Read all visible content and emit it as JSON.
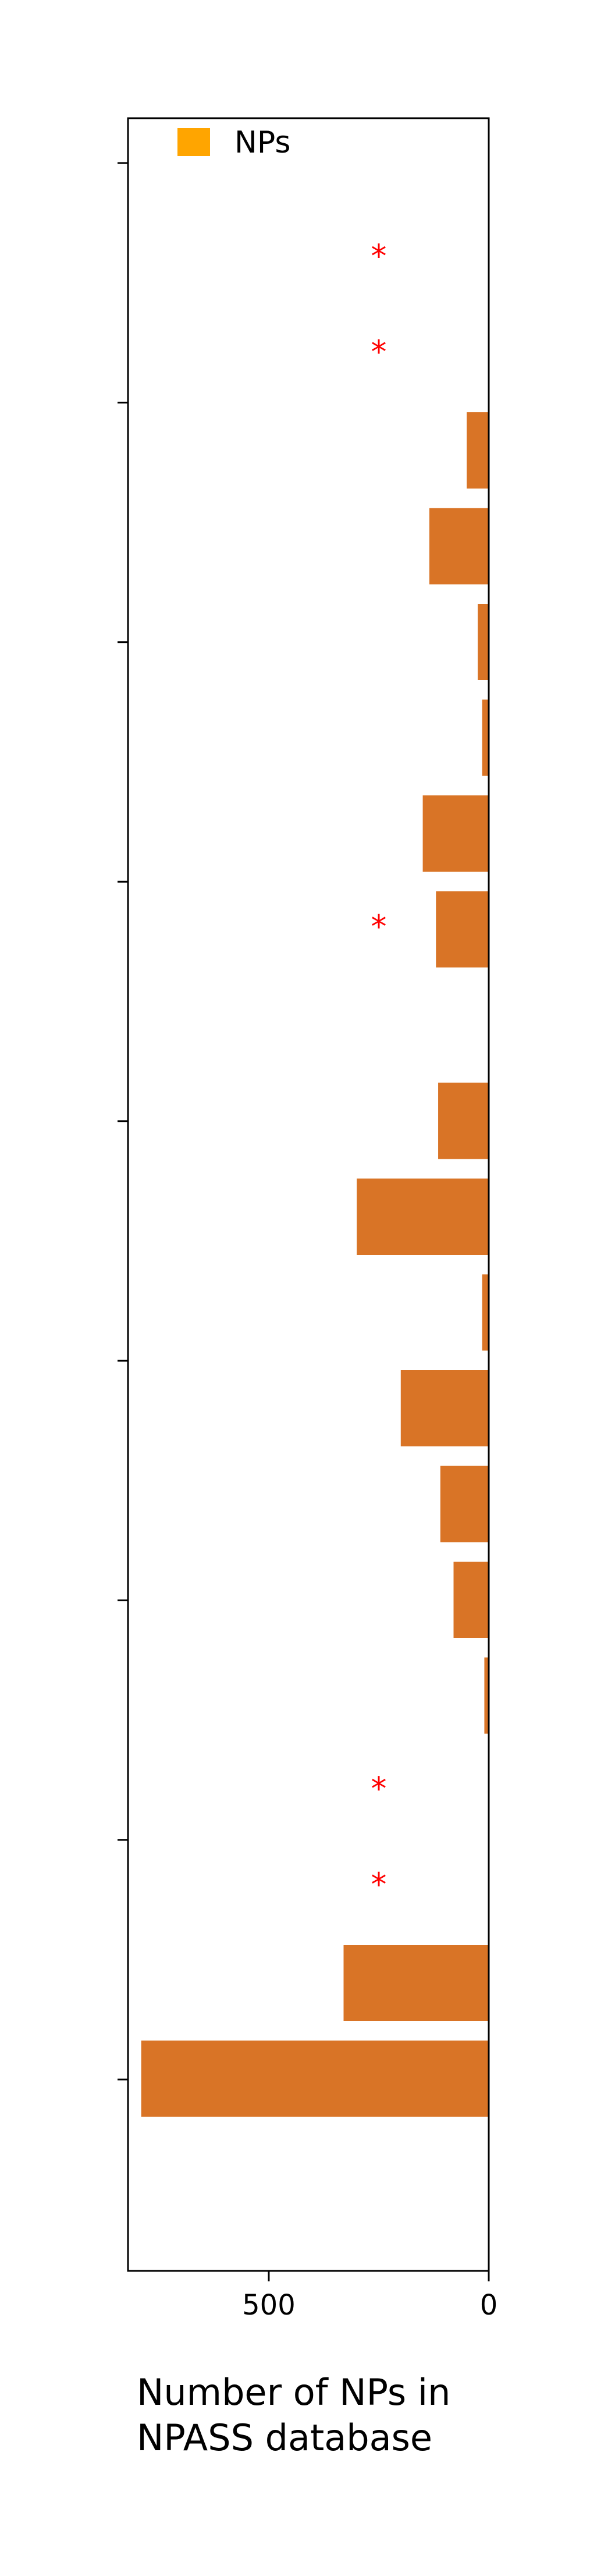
{
  "chart_data": {
    "type": "bar",
    "orientation": "horizontal",
    "x_axis_inverted": true,
    "xlabel_lines": [
      "Number of NPs in",
      "NPASS  database"
    ],
    "xlim": [
      820,
      0
    ],
    "xticks": [
      500,
      0
    ],
    "xtick_labels": [
      "500",
      "0"
    ],
    "legend": {
      "label": "NPs",
      "placement": "top-left",
      "swatch_color": "#ffa500"
    },
    "bar_color": "#d97426",
    "marker_color": "#ff0000",
    "marker_symbol": "*",
    "marker_value": 250,
    "category_count": 20,
    "values": [
      790,
      330,
      0,
      0,
      10,
      80,
      110,
      200,
      15,
      300,
      115,
      0,
      120,
      150,
      15,
      25,
      135,
      50,
      0,
      0
    ],
    "missing_marker": [
      false,
      false,
      true,
      true,
      false,
      false,
      false,
      false,
      false,
      false,
      false,
      false,
      true,
      false,
      false,
      false,
      false,
      false,
      true,
      true
    ],
    "ytick_count": 9
  }
}
